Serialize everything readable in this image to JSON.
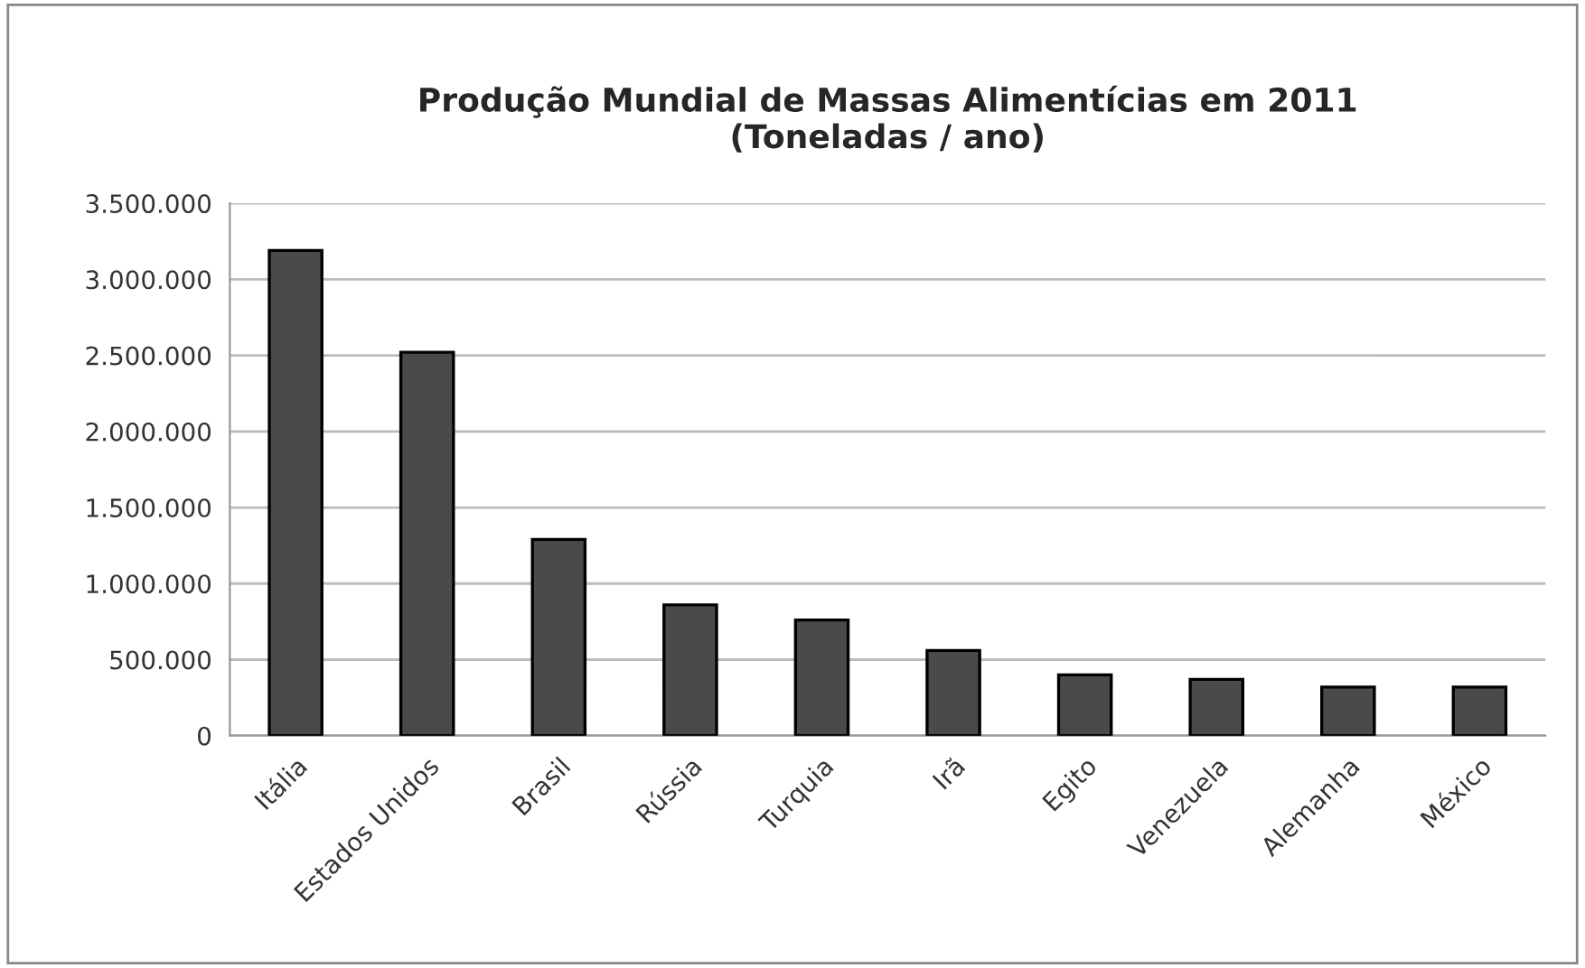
{
  "chart_data": {
    "type": "bar",
    "title": "Produção Mundial de Massas Alimentícias em 2011\n(Toneladas / ano)",
    "categories": [
      "Itália",
      "Estados Unidos",
      "Brasil",
      "Rússia",
      "Turquia",
      "Irã",
      "Egito",
      "Venezuela",
      "Alemanha",
      "México"
    ],
    "values": [
      3190000,
      2520000,
      1290000,
      860000,
      760000,
      560000,
      400000,
      370000,
      320000,
      320000
    ],
    "color": "#4a4a4a",
    "ylim": [
      0,
      3500000
    ],
    "yticks": [
      {
        "value": 0,
        "label": "0"
      },
      {
        "value": 500000,
        "label": "500.000"
      },
      {
        "value": 1000000,
        "label": "1.000.000"
      },
      {
        "value": 1500000,
        "label": "1.500.000"
      },
      {
        "value": 2000000,
        "label": "2.000.000"
      },
      {
        "value": 2500000,
        "label": "2.500.000"
      },
      {
        "value": 3000000,
        "label": "3.000.000"
      },
      {
        "value": 3500000,
        "label": "3.500.000"
      }
    ],
    "grid": "y",
    "legend": false
  }
}
